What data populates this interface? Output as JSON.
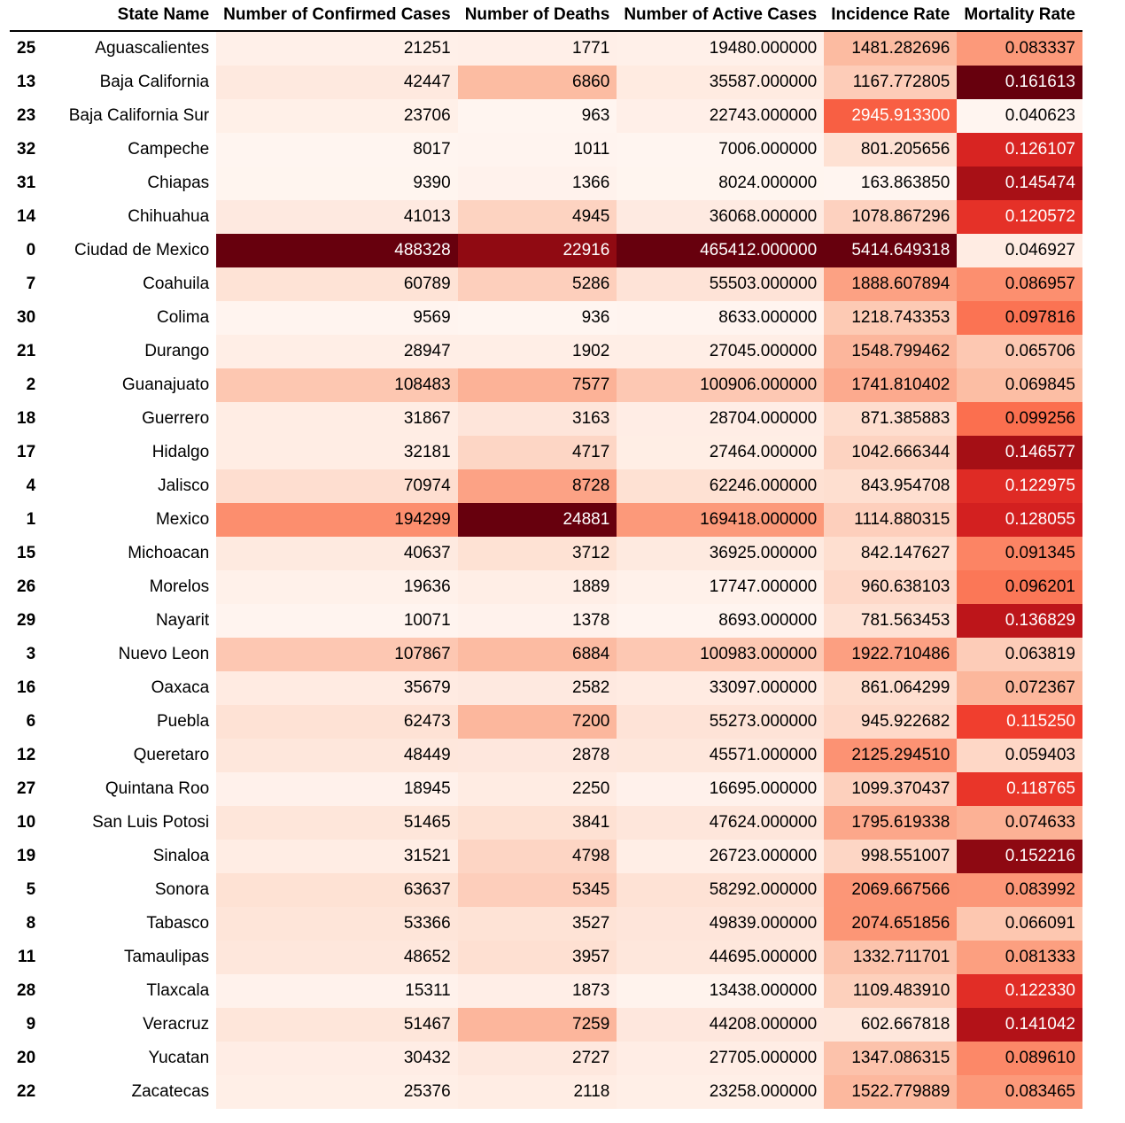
{
  "table": {
    "columns": [
      "",
      "State Name",
      "Number of Confirmed Cases",
      "Number of Deaths",
      "Number of Active Cases",
      "Incidence Rate",
      "Mortality Rate"
    ],
    "rows": [
      [
        "25",
        "Aguascalientes",
        "21251",
        "1771",
        "19480.000000",
        "1481.282696",
        "0.083337"
      ],
      [
        "13",
        "Baja California",
        "42447",
        "6860",
        "35587.000000",
        "1167.772805",
        "0.161613"
      ],
      [
        "23",
        "Baja California Sur",
        "23706",
        "963",
        "22743.000000",
        "2945.913300",
        "0.040623"
      ],
      [
        "32",
        "Campeche",
        "8017",
        "1011",
        "7006.000000",
        "801.205656",
        "0.126107"
      ],
      [
        "31",
        "Chiapas",
        "9390",
        "1366",
        "8024.000000",
        "163.863850",
        "0.145474"
      ],
      [
        "14",
        "Chihuahua",
        "41013",
        "4945",
        "36068.000000",
        "1078.867296",
        "0.120572"
      ],
      [
        "0",
        "Ciudad de Mexico",
        "488328",
        "22916",
        "465412.000000",
        "5414.649318",
        "0.046927"
      ],
      [
        "7",
        "Coahuila",
        "60789",
        "5286",
        "55503.000000",
        "1888.607894",
        "0.086957"
      ],
      [
        "30",
        "Colima",
        "9569",
        "936",
        "8633.000000",
        "1218.743353",
        "0.097816"
      ],
      [
        "21",
        "Durango",
        "28947",
        "1902",
        "27045.000000",
        "1548.799462",
        "0.065706"
      ],
      [
        "2",
        "Guanajuato",
        "108483",
        "7577",
        "100906.000000",
        "1741.810402",
        "0.069845"
      ],
      [
        "18",
        "Guerrero",
        "31867",
        "3163",
        "28704.000000",
        "871.385883",
        "0.099256"
      ],
      [
        "17",
        "Hidalgo",
        "32181",
        "4717",
        "27464.000000",
        "1042.666344",
        "0.146577"
      ],
      [
        "4",
        "Jalisco",
        "70974",
        "8728",
        "62246.000000",
        "843.954708",
        "0.122975"
      ],
      [
        "1",
        "Mexico",
        "194299",
        "24881",
        "169418.000000",
        "1114.880315",
        "0.128055"
      ],
      [
        "15",
        "Michoacan",
        "40637",
        "3712",
        "36925.000000",
        "842.147627",
        "0.091345"
      ],
      [
        "26",
        "Morelos",
        "19636",
        "1889",
        "17747.000000",
        "960.638103",
        "0.096201"
      ],
      [
        "29",
        "Nayarit",
        "10071",
        "1378",
        "8693.000000",
        "781.563453",
        "0.136829"
      ],
      [
        "3",
        "Nuevo Leon",
        "107867",
        "6884",
        "100983.000000",
        "1922.710486",
        "0.063819"
      ],
      [
        "16",
        "Oaxaca",
        "35679",
        "2582",
        "33097.000000",
        "861.064299",
        "0.072367"
      ],
      [
        "6",
        "Puebla",
        "62473",
        "7200",
        "55273.000000",
        "945.922682",
        "0.115250"
      ],
      [
        "12",
        "Queretaro",
        "48449",
        "2878",
        "45571.000000",
        "2125.294510",
        "0.059403"
      ],
      [
        "27",
        "Quintana Roo",
        "18945",
        "2250",
        "16695.000000",
        "1099.370437",
        "0.118765"
      ],
      [
        "10",
        "San Luis Potosi",
        "51465",
        "3841",
        "47624.000000",
        "1795.619338",
        "0.074633"
      ],
      [
        "19",
        "Sinaloa",
        "31521",
        "4798",
        "26723.000000",
        "998.551007",
        "0.152216"
      ],
      [
        "5",
        "Sonora",
        "63637",
        "5345",
        "58292.000000",
        "2069.667566",
        "0.083992"
      ],
      [
        "8",
        "Tabasco",
        "53366",
        "3527",
        "49839.000000",
        "2074.651856",
        "0.066091"
      ],
      [
        "11",
        "Tamaulipas",
        "48652",
        "3957",
        "44695.000000",
        "1332.711701",
        "0.081333"
      ],
      [
        "28",
        "Tlaxcala",
        "15311",
        "1873",
        "13438.000000",
        "1109.483910",
        "0.122330"
      ],
      [
        "9",
        "Veracruz",
        "51467",
        "7259",
        "44208.000000",
        "602.667818",
        "0.141042"
      ],
      [
        "20",
        "Yucatan",
        "30432",
        "2727",
        "27705.000000",
        "1347.086315",
        "0.089610"
      ],
      [
        "22",
        "Zacatecas",
        "25376",
        "2118",
        "23258.000000",
        "1522.779889",
        "0.083465"
      ]
    ]
  },
  "colors": {
    "text_dark": "#000000",
    "text_light": "#ffffff",
    "colormap": [
      "#fff5f0",
      "#fee0d2",
      "#fcbba1",
      "#fc9272",
      "#fb6a4a",
      "#ef3b2c",
      "#cb181d",
      "#a50f15",
      "#67000d"
    ]
  }
}
